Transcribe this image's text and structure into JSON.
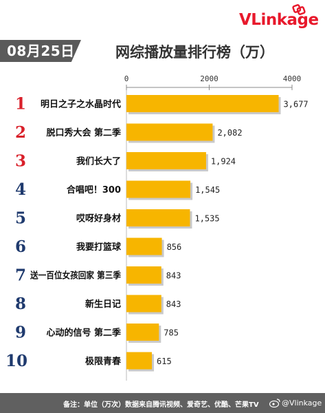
{
  "header": {
    "date": "08月25日",
    "title": "网综播放量排行榜（万）",
    "logo": "VLinkage"
  },
  "footer": {
    "note": "备注：单位（万次）数据来自腾讯视频、爱奇艺、优酷、芒果TV",
    "handle": "@Vlinkage"
  },
  "colors": {
    "bar": "#f7b500",
    "rank_red": "#d9202a",
    "rank_blue": "#1f3a6e",
    "footer_bg": "#606060",
    "date_bg": "#5a5a5a",
    "logo": "#e8192c"
  },
  "chart_data": {
    "type": "bar",
    "orientation": "horizontal",
    "title": "网综播放量排行榜（万）",
    "xlim": [
      0,
      4000
    ],
    "x_ticks": [
      "0",
      "2000",
      "4000"
    ],
    "grid": false,
    "ranks": [
      "1",
      "2",
      "3",
      "4",
      "5",
      "6",
      "7",
      "8",
      "9",
      "10"
    ],
    "categories": [
      "明日之子之水晶时代",
      "脱口秀大会 第二季",
      "我们长大了",
      "合唱吧！300",
      "哎呀好身材",
      "我要打篮球",
      "送一百位女孩回家 第三季",
      "新生日记",
      "心动的信号 第二季",
      "极限青春"
    ],
    "values": [
      3677,
      2082,
      1924,
      1545,
      1535,
      856,
      843,
      843,
      785,
      615
    ],
    "value_labels": [
      "3,677",
      "2,082",
      "1,924",
      "1,545",
      "1,535",
      "856",
      "843",
      "843",
      "785",
      "615"
    ]
  }
}
